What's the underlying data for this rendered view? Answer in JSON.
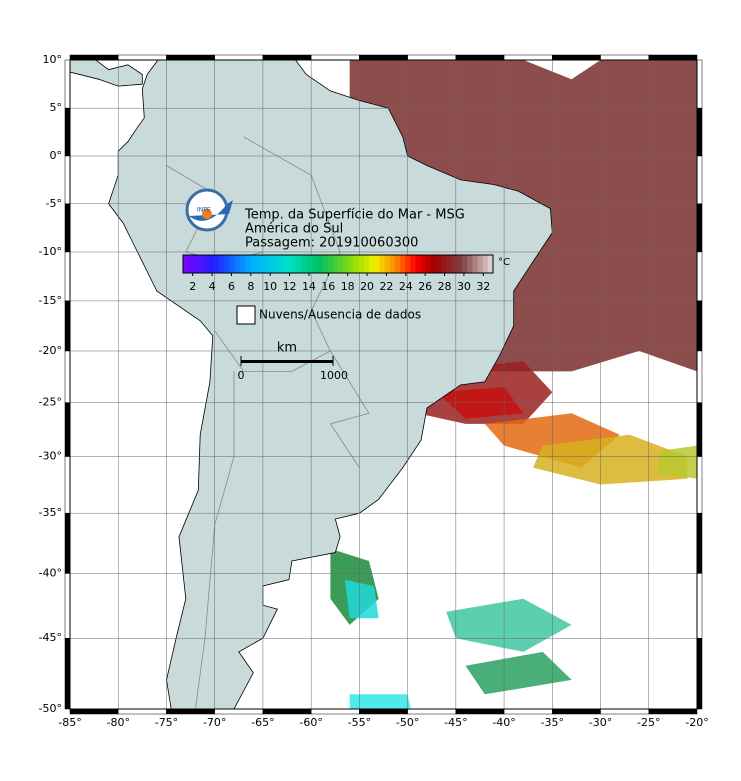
{
  "map": {
    "title_lines": [
      "Temp. da Superfície do Mar - MSG",
      "América do Sul",
      "Passagem: 201910060300"
    ],
    "colorbar_unit": "°C",
    "colorbar_lim": [
      1,
      33
    ],
    "colorbar_ticks": [
      2,
      4,
      6,
      8,
      10,
      12,
      14,
      16,
      18,
      20,
      22,
      24,
      26,
      28,
      30,
      32
    ],
    "legend_label": "Nuvens/Ausencia de dados",
    "scale_unit": "km",
    "scale_labels": [
      "0",
      "1000"
    ],
    "lon_ticks": [
      {
        "value": -85,
        "label": "-85°"
      },
      {
        "value": -80,
        "label": "-80°"
      },
      {
        "value": -75,
        "label": "-75°"
      },
      {
        "value": -70,
        "label": "-70°"
      },
      {
        "value": -65,
        "label": "-65°"
      },
      {
        "value": -60,
        "label": "-60°"
      },
      {
        "value": -55,
        "label": "-55°"
      },
      {
        "value": -50,
        "label": "-50°"
      },
      {
        "value": -45,
        "label": "-45°"
      },
      {
        "value": -40,
        "label": "-40°"
      },
      {
        "value": -35,
        "label": "-35°"
      },
      {
        "value": -30,
        "label": "-30°"
      },
      {
        "value": -25,
        "label": "-25°"
      },
      {
        "value": -20,
        "label": "-20°"
      }
    ],
    "lat_ticks": [
      {
        "value": 10,
        "label": "10°"
      },
      {
        "value": 5,
        "label": "5°"
      },
      {
        "value": 0,
        "label": "0°"
      },
      {
        "value": -5,
        "label": "-5°"
      },
      {
        "value": -10,
        "label": "-10°"
      },
      {
        "value": -15,
        "label": "-15°"
      },
      {
        "value": -20,
        "label": "-20°"
      },
      {
        "value": -25,
        "label": "-25°"
      },
      {
        "value": -30,
        "label": "-30°"
      },
      {
        "value": -35,
        "label": "-35°"
      },
      {
        "value": -40,
        "label": "-40°"
      },
      {
        "value": -45,
        "label": "-45°"
      },
      {
        "value": -50,
        "label": "-50°"
      }
    ]
  }
}
